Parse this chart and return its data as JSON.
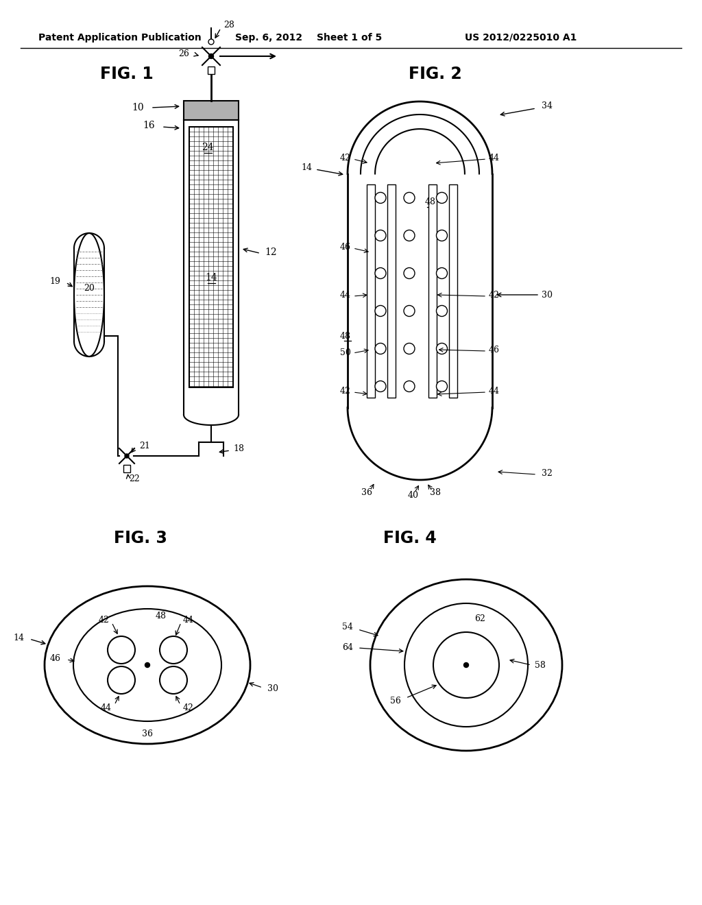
{
  "bg_color": "#ffffff",
  "line_color": "#000000",
  "header_left": "Patent Application Publication",
  "header_mid1": "Sep. 6, 2012",
  "header_mid2": "Sheet 1 of 5",
  "header_right": "US 2012/0225010 A1"
}
